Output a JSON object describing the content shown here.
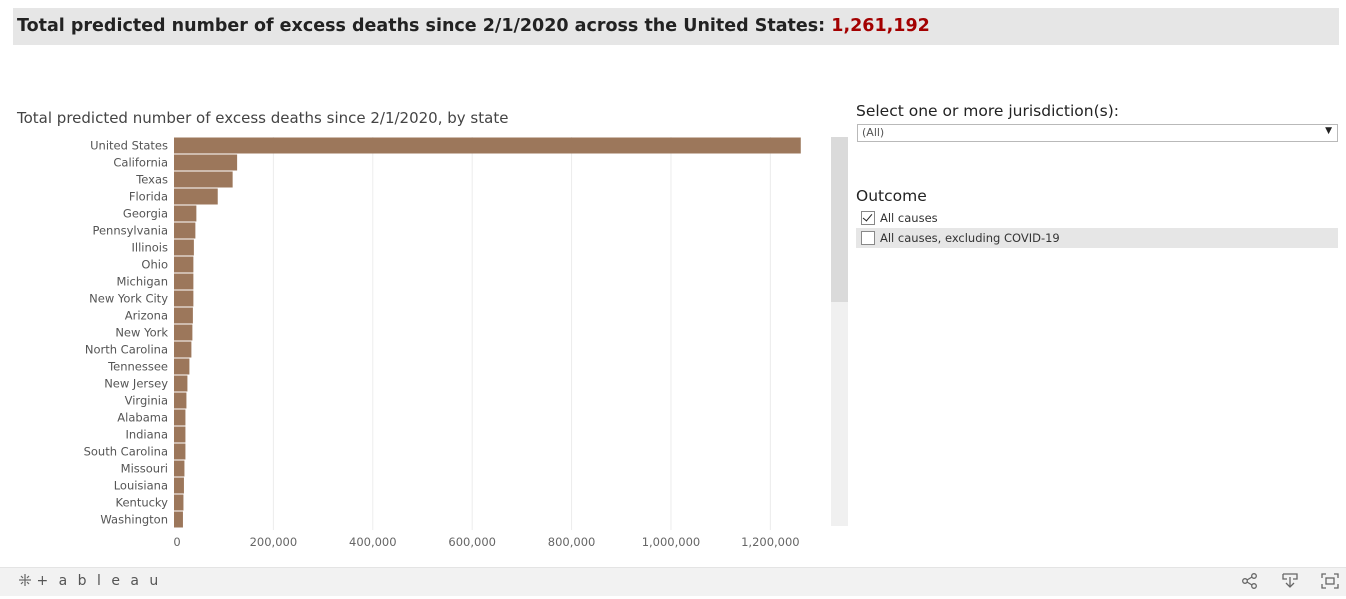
{
  "header": {
    "title": "Total predicted number of excess deaths since 2/1/2020 across the United States:",
    "value": "1,261,192",
    "value_color": "#a30000"
  },
  "filters": {
    "jurisdiction_label": "Select one or more jurisdiction(s):",
    "jurisdiction_value": "(All)",
    "outcome_label": "Outcome",
    "options": [
      {
        "label": "All causes",
        "checked": true
      },
      {
        "label": "All causes, excluding COVID-19",
        "checked": false
      }
    ]
  },
  "footer": {
    "logo": "+ a b l e a u",
    "icons": [
      "share-icon",
      "download-icon",
      "fullscreen-icon"
    ]
  },
  "chart_data": {
    "type": "bar",
    "orientation": "horizontal",
    "title": "Total predicted number of excess deaths since 2/1/2020, by state",
    "bar_color": "#9c775b",
    "categories": [
      "United States",
      "California",
      "Texas",
      "Florida",
      "Georgia",
      "Pennsylvania",
      "Illinois",
      "Ohio",
      "Michigan",
      "New York City",
      "Arizona",
      "New York",
      "North Carolina",
      "Tennessee",
      "New Jersey",
      "Virginia",
      "Alabama",
      "Indiana",
      "South Carolina",
      "Missouri",
      "Louisiana",
      "Kentucky",
      "Washington"
    ],
    "values": [
      1261192,
      127000,
      118000,
      88000,
      45000,
      43000,
      40000,
      39000,
      39000,
      39000,
      38000,
      37000,
      35000,
      31000,
      27000,
      25000,
      23000,
      23000,
      23000,
      21000,
      20000,
      19000,
      18000
    ],
    "xlim": [
      0,
      1320000
    ],
    "xticks": [
      0,
      200000,
      400000,
      600000,
      800000,
      1000000,
      1200000
    ],
    "xtick_labels": [
      "0",
      "200,000",
      "400,000",
      "600,000",
      "800,000",
      "1,000,000",
      "1,200,000"
    ],
    "grid": true
  }
}
